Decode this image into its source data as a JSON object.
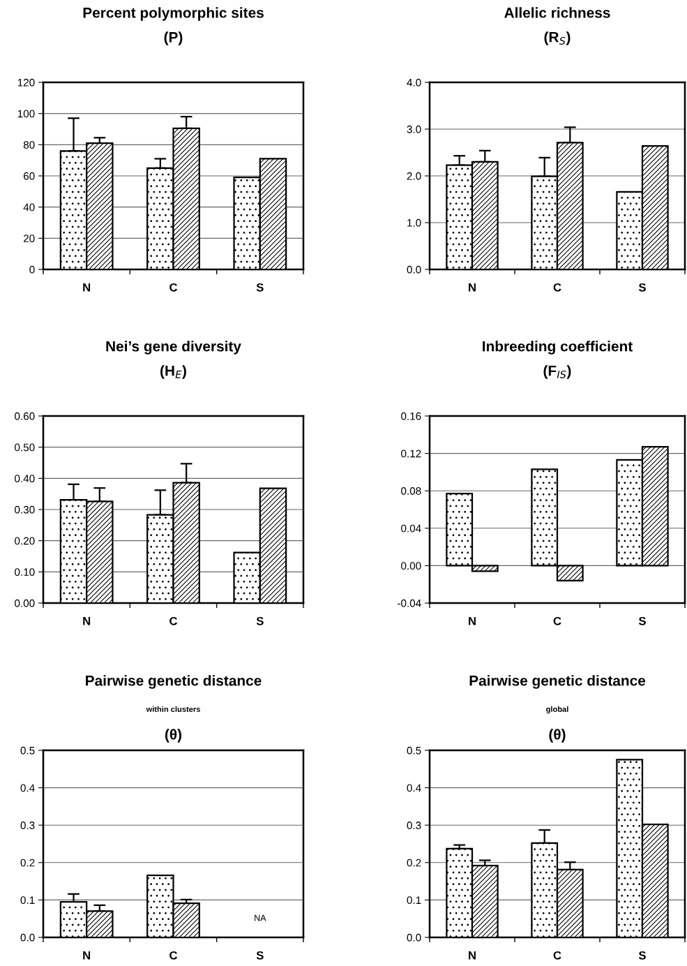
{
  "chart_data": [
    {
      "type": "bar",
      "title": "Percent polymorphic sites",
      "subtitle": "(P)",
      "categories": [
        "N",
        "C",
        "S"
      ],
      "series": [
        {
          "color": "#000000",
          "values": [
            76,
            65,
            59
          ],
          "errors": [
            [
              76,
              97
            ],
            [
              65,
              71
            ],
            null
          ]
        },
        {
          "color": "#000000",
          "values": [
            81,
            90.5,
            71
          ],
          "errors": [
            [
              81,
              84.5
            ],
            [
              90.5,
              98
            ],
            null
          ]
        }
      ],
      "ylim": [
        0,
        120
      ],
      "yticks": [
        0,
        20,
        40,
        60,
        80,
        100,
        120
      ],
      "grid": "y"
    },
    {
      "type": "bar",
      "title": "Allelic richness",
      "subtitle": "(R$_{S}$)",
      "categories": [
        "N",
        "C",
        "S"
      ],
      "series": [
        {
          "color": "#000000",
          "values": [
            2.23,
            1.99,
            1.66
          ],
          "errors": [
            [
              2.23,
              2.43
            ],
            [
              1.99,
              2.39
            ],
            null
          ]
        },
        {
          "color": "#000000",
          "values": [
            2.3,
            2.71,
            2.64
          ],
          "errors": [
            [
              2.3,
              2.54
            ],
            [
              2.71,
              3.04
            ],
            null
          ]
        }
      ],
      "ylim": [
        0,
        4
      ],
      "yticks": [
        {
          "value": 0,
          "label": "0.0"
        },
        {
          "value": 1,
          "label": "1.0"
        },
        {
          "value": 2,
          "label": "2.0"
        },
        {
          "value": 3,
          "label": "3.0"
        },
        {
          "value": 4,
          "label": "4.0"
        }
      ],
      "grid": "y"
    },
    {
      "type": "bar",
      "title": "Nei’s gene diversity",
      "subtitle": "(H$_{E}$)",
      "categories": [
        "N",
        "C",
        "S"
      ],
      "series": [
        {
          "color": "#000000",
          "values": [
            0.331,
            0.283,
            0.162
          ],
          "errors": [
            [
              0.331,
              0.381
            ],
            [
              0.283,
              0.362
            ],
            null
          ]
        },
        {
          "color": "#000000",
          "values": [
            0.326,
            0.386,
            0.368
          ],
          "errors": [
            [
              0.326,
              0.369
            ],
            [
              0.386,
              0.447
            ],
            null
          ]
        }
      ],
      "ylim": [
        0,
        0.6
      ],
      "yticks": [
        {
          "value": 0,
          "label": "0.00"
        },
        {
          "value": 0.1,
          "label": "0.10"
        },
        {
          "value": 0.2,
          "label": "0.20"
        },
        {
          "value": 0.3,
          "label": "0.30"
        },
        {
          "value": 0.4,
          "label": "0.40"
        },
        {
          "value": 0.5,
          "label": "0.50"
        },
        {
          "value": 0.6,
          "label": "0.60"
        }
      ],
      "grid": "y"
    },
    {
      "type": "bar",
      "title": "Inbreeding coefficient",
      "subtitle": "(F$_{IS}$)",
      "categories": [
        "N",
        "C",
        "S"
      ],
      "series": [
        {
          "color": "#000000",
          "values": [
            0.077,
            0.103,
            0.113
          ]
        },
        {
          "color": "#000000",
          "values": [
            -0.006,
            -0.016,
            0.127
          ]
        }
      ],
      "ylim": [
        -0.04,
        0.16
      ],
      "yticks": [
        {
          "value": -0.04,
          "label": "-0.04"
        },
        {
          "value": 0,
          "label": "0.00"
        },
        {
          "value": 0.04,
          "label": "0.04"
        },
        {
          "value": 0.08,
          "label": "0.08"
        },
        {
          "value": 0.12,
          "label": "0.12"
        },
        {
          "value": 0.16,
          "label": "0.16"
        }
      ],
      "grid": "y"
    },
    {
      "type": "bar",
      "title": "Pairwise genetic distance",
      "subtitle": "within clusters\n(θ)",
      "categories": [
        "N",
        "C",
        "S"
      ],
      "series": [
        {
          "color": "#000000",
          "values": [
            0.095,
            0.166,
            null
          ],
          "errors": [
            [
              0.095,
              0.116
            ],
            null,
            null
          ]
        },
        {
          "color": "#000000",
          "values": [
            0.07,
            0.091,
            null
          ],
          "errors": [
            [
              0.07,
              0.086
            ],
            [
              0.091,
              0.101
            ],
            null
          ]
        }
      ],
      "annotations": [
        "NA"
      ],
      "ylim": [
        0,
        0.5
      ],
      "yticks": [
        {
          "value": 0,
          "label": "0.0"
        },
        0.1,
        0.2,
        0.3,
        0.4,
        0.5
      ],
      "grid": "y"
    },
    {
      "type": "bar",
      "title": "Pairwise genetic distance",
      "subtitle": "global\n(θ)",
      "categories": [
        "N",
        "C",
        "S"
      ],
      "series": [
        {
          "color": "#000000",
          "values": [
            0.237,
            0.252,
            0.475
          ],
          "errors": [
            [
              0.237,
              0.247
            ],
            [
              0.252,
              0.287
            ],
            null
          ]
        },
        {
          "color": "#000000",
          "values": [
            0.192,
            0.181,
            0.302
          ],
          "errors": [
            [
              0.192,
              0.206
            ],
            [
              0.181,
              0.201
            ],
            null
          ]
        }
      ],
      "ylim": [
        0,
        0.5
      ],
      "yticks": [
        {
          "value": 0,
          "label": "0.0"
        },
        0.1,
        0.2,
        0.3,
        0.4,
        0.5
      ],
      "grid": "y"
    }
  ]
}
